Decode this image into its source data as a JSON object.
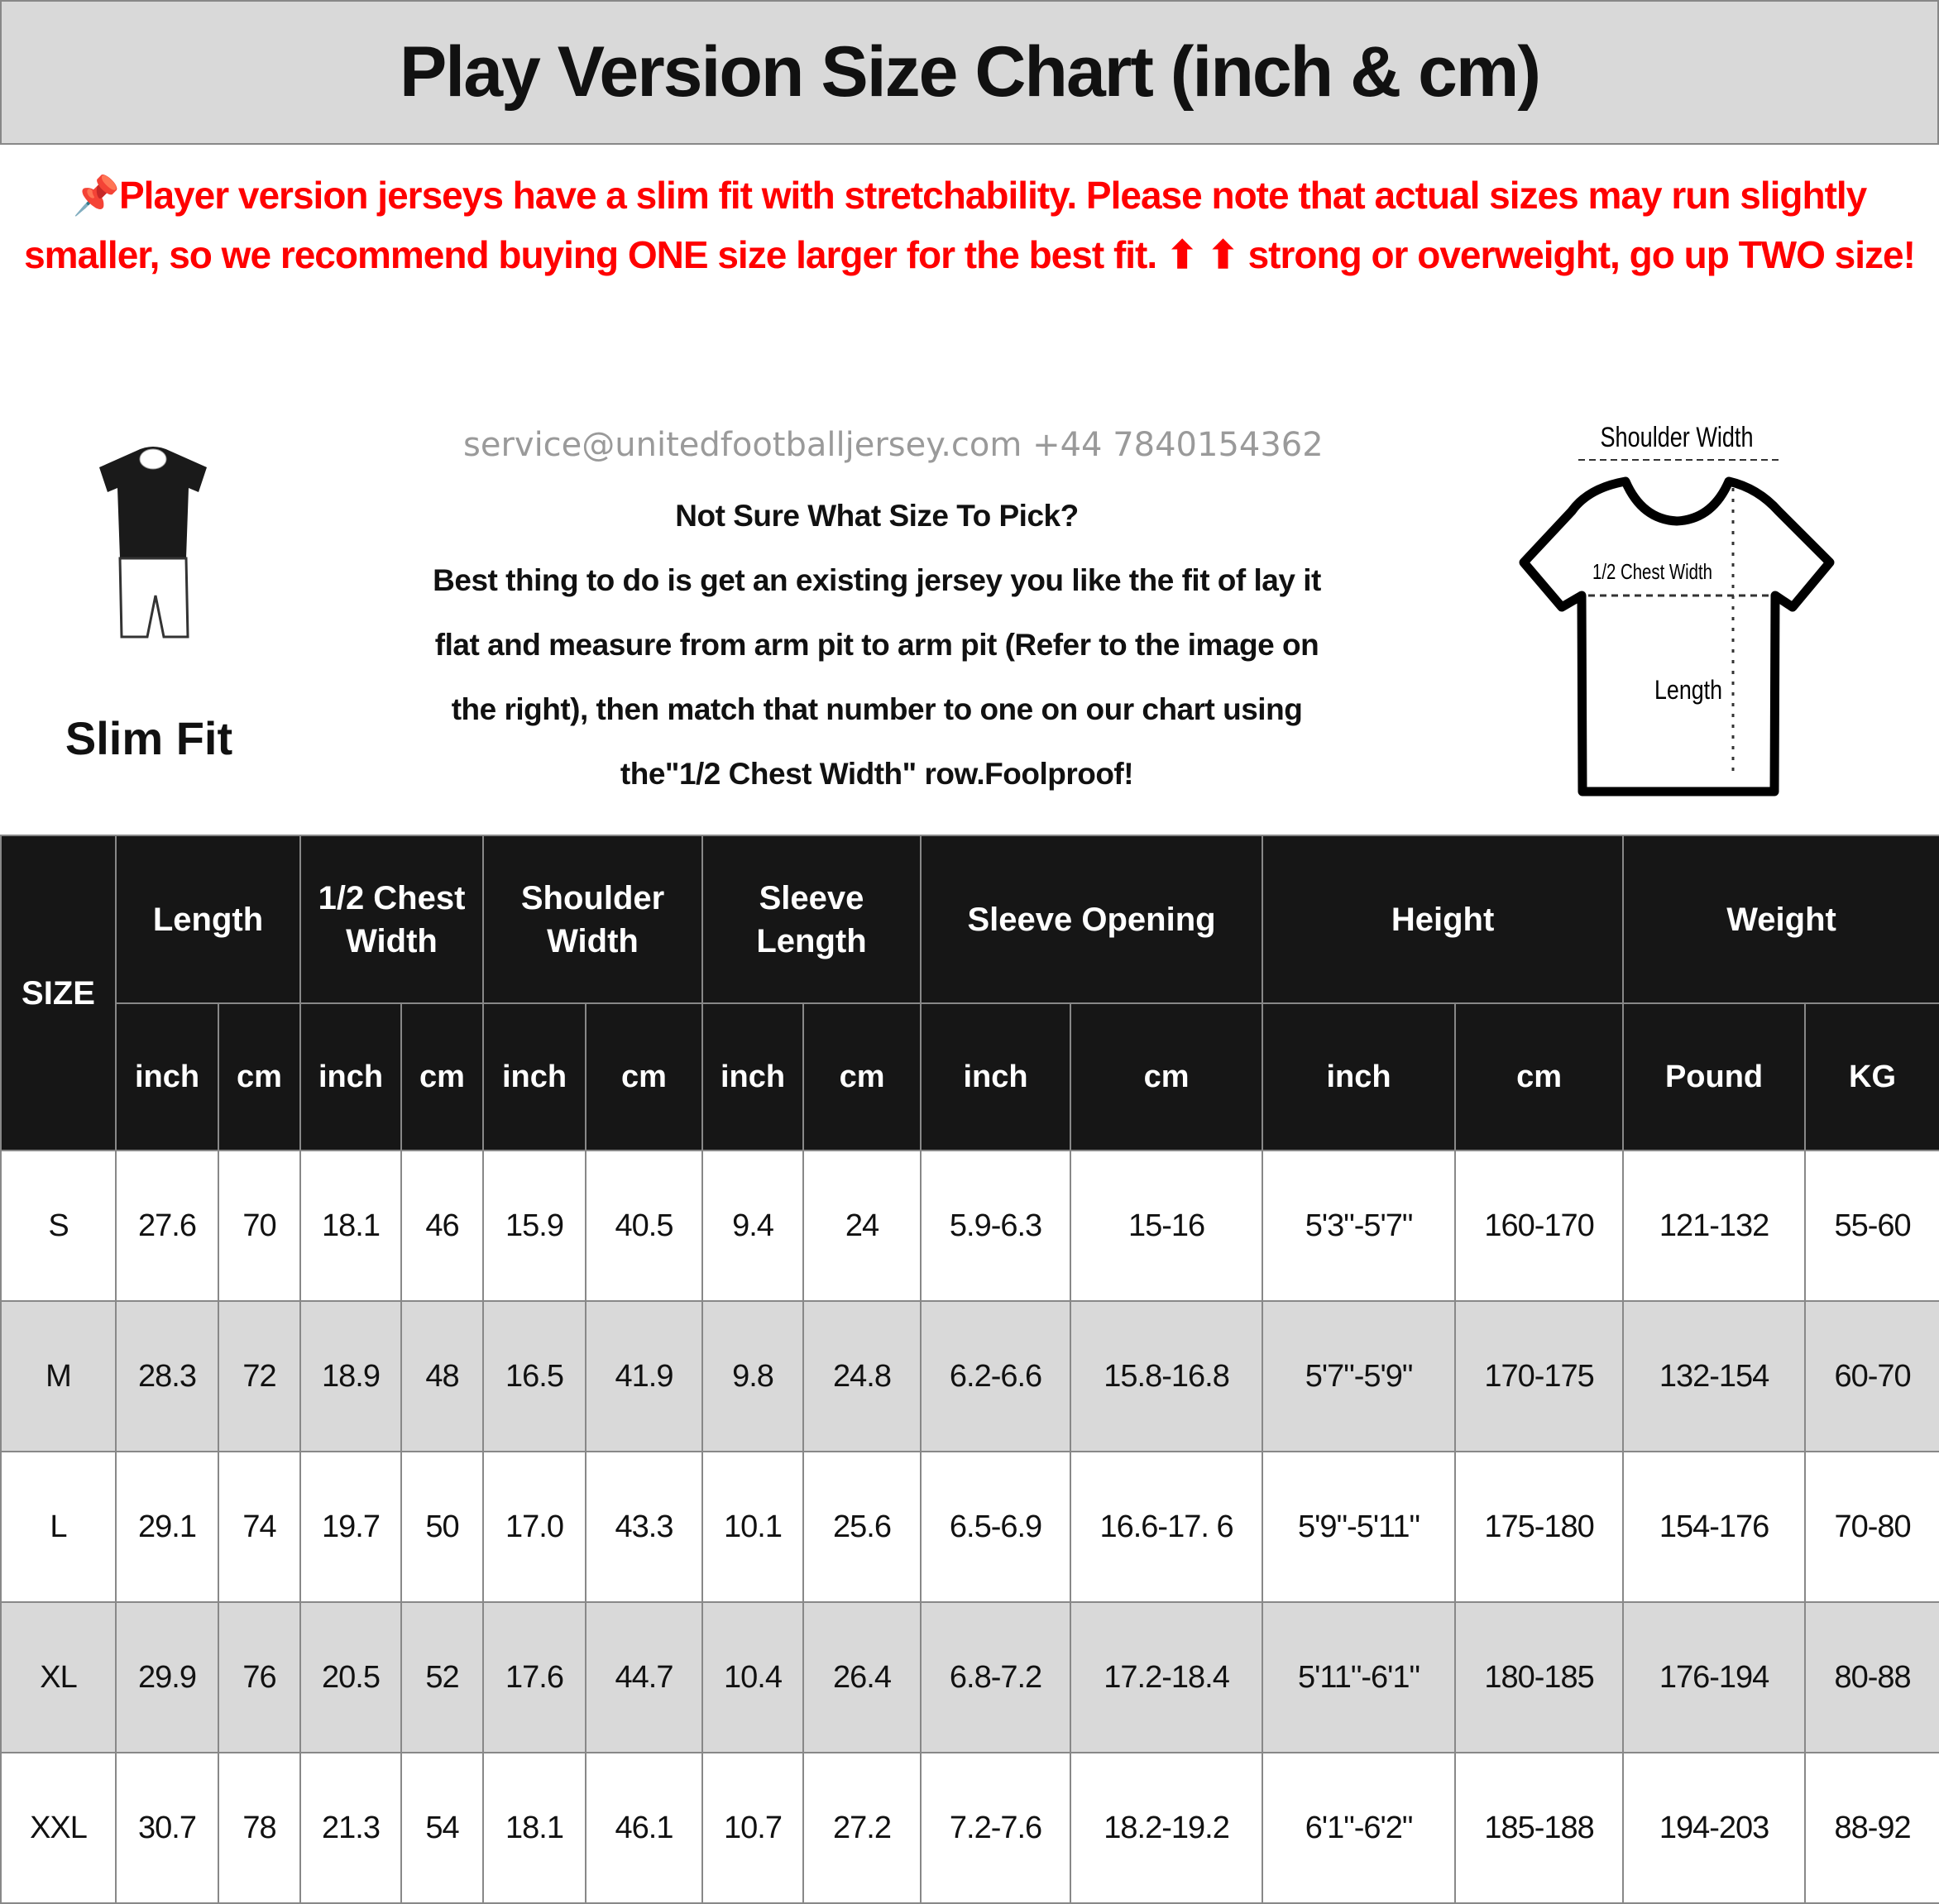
{
  "title": "Play Version Size Chart (inch & cm)",
  "notice": {
    "icon": "pushpin-icon",
    "lines": [
      "Player version jerseys have a slim fit with stretchability. Please note that actual sizes may run",
      "slightly smaller, so we recommend buying ONE size larger for the best fit. ⬆ ⬆ strong or overweight,",
      "go up TWO size!"
    ],
    "color": "#ff0000"
  },
  "fit": {
    "label": "Slim Fit",
    "icon": "mannequin-slim-fit-icon"
  },
  "advice": {
    "lines": [
      "Not Sure What Size To Pick?",
      "Best thing to do is get an existing jersey you like the fit of lay it",
      "flat and measure from arm pit to arm pit (Refer to the image on",
      "the right), then match that number to one on our chart using",
      "the\"1/2 Chest Width\" row.Foolproof!"
    ]
  },
  "diagram": {
    "shoulder": "Shoulder Width",
    "chest": "1/2 Chest Width",
    "length": "Length"
  },
  "watermark": "service@unitedfootballjersey.com   +44 7840154362",
  "table": {
    "size_header": "SIZE",
    "groups": [
      {
        "label": "Length",
        "units": [
          "inch",
          "cm"
        ]
      },
      {
        "label": "1/2 Chest Width",
        "units": [
          "inch",
          "cm"
        ]
      },
      {
        "label": "Shoulder Width",
        "units": [
          "inch",
          "cm"
        ]
      },
      {
        "label": "Sleeve Length",
        "units": [
          "inch",
          "cm"
        ]
      },
      {
        "label": "Sleeve Opening",
        "units": [
          "inch",
          "cm"
        ]
      },
      {
        "label": "Height",
        "units": [
          "inch",
          "cm"
        ]
      },
      {
        "label": "Weight",
        "units": [
          "Pound",
          "KG"
        ]
      }
    ],
    "rows": [
      [
        "S",
        "27.6",
        "70",
        "18.1",
        "46",
        "15.9",
        "40.5",
        "9.4",
        "24",
        "5.9-6.3",
        "15-16",
        "5'3\"-5'7\"",
        "160-170",
        "121-132",
        "55-60"
      ],
      [
        "M",
        "28.3",
        "72",
        "18.9",
        "48",
        "16.5",
        "41.9",
        "9.8",
        "24.8",
        "6.2-6.6",
        "15.8-16.8",
        "5'7\"-5'9\"",
        "170-175",
        "132-154",
        "60-70"
      ],
      [
        "L",
        "29.1",
        "74",
        "19.7",
        "50",
        "17.0",
        "43.3",
        "10.1",
        "25.6",
        "6.5-6.9",
        "16.6-17. 6",
        "5'9\"-5'11\"",
        "175-180",
        "154-176",
        "70-80"
      ],
      [
        "XL",
        "29.9",
        "76",
        "20.5",
        "52",
        "17.6",
        "44.7",
        "10.4",
        "26.4",
        "6.8-7.2",
        "17.2-18.4",
        "5'11\"-6'1\"",
        "180-185",
        "176-194",
        "80-88"
      ],
      [
        "XXL",
        "30.7",
        "78",
        "21.3",
        "54",
        "18.1",
        "46.1",
        "10.7",
        "27.2",
        "7.2-7.6",
        "18.2-19.2",
        "6'1\"-6'2\"",
        "185-188",
        "194-203",
        "88-92"
      ]
    ]
  }
}
